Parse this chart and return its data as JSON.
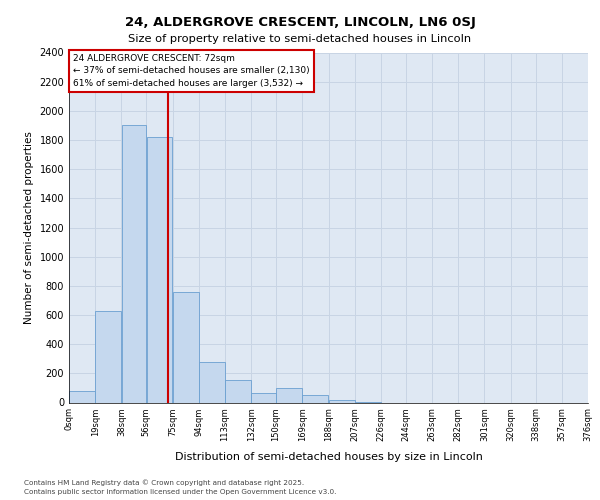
{
  "title1": "24, ALDERGROVE CRESCENT, LINCOLN, LN6 0SJ",
  "title2": "Size of property relative to semi-detached houses in Lincoln",
  "xlabel": "Distribution of semi-detached houses by size in Lincoln",
  "ylabel": "Number of semi-detached properties",
  "footnote1": "Contains HM Land Registry data © Crown copyright and database right 2025.",
  "footnote2": "Contains public sector information licensed under the Open Government Licence v3.0.",
  "annotation_line1": "24 ALDERGROVE CRESCENT: 72sqm",
  "annotation_line2": "← 37% of semi-detached houses are smaller (2,130)",
  "annotation_line3": "61% of semi-detached houses are larger (3,532) →",
  "property_size": 72,
  "bar_left_edges": [
    0,
    19,
    38,
    56,
    75,
    94,
    113,
    132,
    150,
    169,
    188,
    207,
    226,
    244,
    263,
    282,
    301,
    320,
    338,
    357
  ],
  "bar_widths": [
    19,
    19,
    18,
    19,
    19,
    19,
    19,
    18,
    19,
    19,
    19,
    19,
    18,
    19,
    19,
    19,
    19,
    18,
    19,
    19
  ],
  "bar_heights": [
    80,
    630,
    1900,
    1820,
    760,
    280,
    155,
    65,
    100,
    50,
    18,
    5,
    0,
    0,
    0,
    0,
    0,
    0,
    0,
    0
  ],
  "tick_labels": [
    "0sqm",
    "19sqm",
    "38sqm",
    "56sqm",
    "75sqm",
    "94sqm",
    "113sqm",
    "132sqm",
    "150sqm",
    "169sqm",
    "188sqm",
    "207sqm",
    "226sqm",
    "244sqm",
    "263sqm",
    "282sqm",
    "301sqm",
    "320sqm",
    "338sqm",
    "357sqm",
    "376sqm"
  ],
  "tick_positions": [
    0,
    19,
    38,
    56,
    75,
    94,
    113,
    132,
    150,
    169,
    188,
    207,
    226,
    244,
    263,
    282,
    301,
    320,
    338,
    357,
    376
  ],
  "bar_color": "#c5d8ee",
  "bar_edge_color": "#6a9fd0",
  "red_line_color": "#cc0000",
  "box_edge_color": "#cc0000",
  "bg_color": "#dfe8f3",
  "grid_color": "#c8d4e4",
  "ylim": [
    0,
    2400
  ],
  "xlim": [
    0,
    376
  ]
}
